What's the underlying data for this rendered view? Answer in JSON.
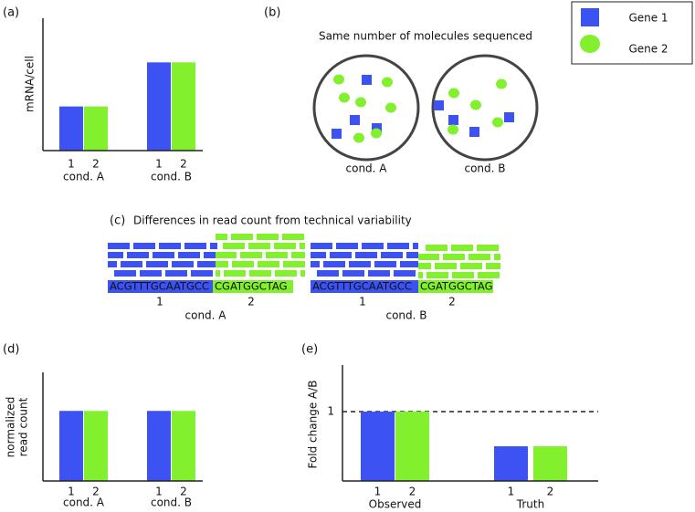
{
  "legend": [
    {
      "name": "Gene 1",
      "color": "#3d52f2"
    },
    {
      "name": "Gene 2",
      "color": "#82f02c"
    }
  ],
  "chart_data": [
    {
      "type": "bar",
      "panel": "(a)",
      "ylabel": "mRNA/cell",
      "categories": [
        "cond. A",
        "cond. B"
      ],
      "series": [
        {
          "label": "1",
          "values": [
            1,
            2
          ]
        },
        {
          "label": "2",
          "values": [
            1,
            2
          ]
        }
      ],
      "ylim": [
        0,
        3
      ]
    },
    {
      "type": "bar",
      "panel": "(d)",
      "ylabel": [
        "normalized",
        "read count"
      ],
      "categories": [
        "cond. A",
        "cond. B"
      ],
      "series": [
        {
          "label": "1",
          "values": [
            1,
            1
          ]
        },
        {
          "label": "2",
          "values": [
            1,
            1
          ]
        }
      ],
      "ylim": [
        0,
        1.55
      ]
    },
    {
      "type": "bar",
      "panel": "(e)",
      "ylabel": "Fold change A/B",
      "categories": [
        "Observed",
        "Truth"
      ],
      "series": [
        {
          "label": "1",
          "values": [
            1,
            0.5
          ]
        },
        {
          "label": "2",
          "values": [
            1,
            0.5
          ]
        }
      ],
      "ylim": [
        0,
        1.67
      ],
      "yticks": [
        1
      ],
      "grid": "dashed"
    }
  ],
  "panel_b": {
    "label": "(b)",
    "title": "Same number of molecules sequenced",
    "conditions": [
      "cond. A",
      "cond. B"
    ]
  },
  "panel_c": {
    "label": "(c)",
    "title": "Differences in read count from technical variability",
    "sequences": [
      "ACGTTTGCAATGCC",
      "CGATGGCTAG"
    ],
    "gene_labels": [
      "1",
      "2"
    ],
    "conditions": [
      "cond. A",
      "cond. B"
    ]
  }
}
